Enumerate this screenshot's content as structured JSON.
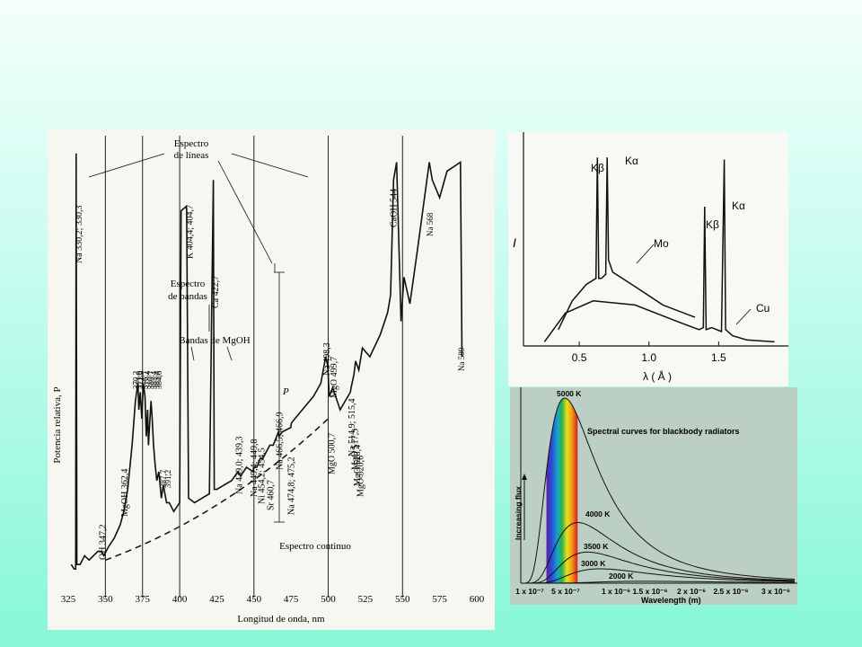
{
  "chart_data": [
    {
      "type": "line",
      "title": "",
      "xlabel": "Longitud de onda, nm",
      "ylabel": "Potencia relativa, P",
      "xlim": [
        325,
        600
      ],
      "x_ticks": [
        "325",
        "350",
        "375",
        "400",
        "425",
        "450",
        "475",
        "500",
        "525",
        "550",
        "575",
        "600"
      ],
      "x_tick_values": [
        325,
        350,
        375,
        400,
        425,
        450,
        475,
        500,
        525,
        550,
        575,
        600
      ],
      "ylim": [
        0,
        100
      ],
      "grid_x": [
        350,
        375,
        400,
        450,
        500,
        550
      ],
      "series": [
        {
          "x": [
            327,
            329,
            330,
            330.3,
            330.8,
            333,
            336,
            339,
            342,
            345,
            347.2,
            349,
            352,
            356,
            360,
            362.4,
            365,
            368,
            370.2,
            371.9,
            372.5,
            373.5,
            374.5,
            375.5,
            376.7,
            377.5,
            378.4,
            379,
            380.7,
            381.5,
            382.4,
            383.4,
            384.6,
            386,
            387.7,
            389,
            391.2,
            393,
            396,
            400,
            401,
            404.4,
            404.7,
            406,
            410,
            415,
            420,
            422.7,
            423.3,
            425,
            430,
            435,
            439.3,
            441,
            445,
            449.4,
            449.8,
            452,
            454.2,
            456,
            460.7,
            463,
            466.5,
            466.9,
            469,
            474.8,
            475.2,
            480,
            485,
            490,
            495,
            498.3,
            499.7,
            500.7,
            503,
            508,
            514.9,
            515.4,
            517.3,
            518.4,
            520.6,
            523,
            528,
            535,
            540,
            542,
            544,
            546,
            549,
            551,
            555,
            560,
            568,
            570,
            575,
            580,
            589,
            590
          ],
          "y": [
            3,
            2,
            2,
            96,
            3,
            3,
            5,
            4,
            5,
            6,
            6,
            5,
            7,
            9,
            12,
            15,
            20,
            30,
            40,
            44,
            38,
            42,
            36,
            44,
            41,
            32,
            38,
            30,
            40,
            36,
            30,
            26,
            22,
            24,
            18,
            21,
            17,
            17,
            15,
            17,
            83,
            84,
            83,
            18,
            17,
            18,
            19,
            90,
            20,
            20,
            21,
            22,
            24,
            23,
            25,
            24,
            25,
            25,
            27,
            27,
            30,
            30,
            33,
            32,
            33,
            34,
            35,
            37,
            39,
            41,
            44,
            50,
            48,
            41,
            43,
            38,
            42,
            43,
            46,
            49,
            47,
            52,
            50,
            55,
            60,
            64,
            90,
            94,
            58,
            68,
            62,
            74,
            94,
            90,
            86,
            92,
            94,
            50
          ],
          "annotations": [
            "Na 330,2; 330,3",
            "OH 347,2",
            "MgOH 362,4",
            "370,2",
            "371,9",
            "372,9",
            "376,7",
            "378,4",
            "380,7",
            "382,4",
            "383,4",
            "384,6",
            "387,7",
            "391,2",
            "K 404,4; 404,7",
            "Ca 422,7",
            "Na 439,0; 439,3",
            "Na 449,4; 449,8",
            "Ni 454,2; 454,5",
            "Sr 460,7",
            "Na 466,5; 466,9",
            "Na 474,8; 475,2",
            "Na 498,3",
            "MgO 499,7",
            "MgO 500,7",
            "Na 514,9; 515,4",
            "MgO 517,3",
            "MgO 518,4",
            "MgO 520,6",
            "CaOH 544",
            "Na 568",
            "Na 589"
          ]
        }
      ],
      "labels": {
        "espectro_lineas": "Espectro\nde líneas",
        "espectro_lineas_1": "Espectro",
        "espectro_lineas_2": "de líneas",
        "espectro_bandas_1": "Espectro",
        "espectro_bandas_2": "de bandas",
        "bandas_mgoh": "Bandas de MgOH",
        "espectro_continuo": "Espectro continuo",
        "p_marker": "P"
      },
      "colors": {
        "line": "#111111",
        "background": "#f7f6f1"
      }
    },
    {
      "type": "line",
      "title": "",
      "xlabel": "λ ( Å )",
      "ylabel": "I",
      "x_ticks": [
        "0.5",
        "1.0",
        "1.5"
      ],
      "x_tick_values": [
        0.5,
        1.0,
        1.5
      ],
      "xlim": [
        0.1,
        2.0
      ],
      "series": [
        {
          "name": "Mo",
          "x": [
            0.35,
            0.45,
            0.55,
            0.62,
            0.63,
            0.64,
            0.66,
            0.69,
            0.7,
            0.71,
            0.74,
            0.9,
            1.1,
            1.33
          ],
          "y": [
            0.08,
            0.22,
            0.3,
            0.33,
            0.92,
            0.33,
            0.33,
            0.35,
            0.92,
            0.42,
            0.36,
            0.29,
            0.2,
            0.14
          ]
        },
        {
          "name": "Cu",
          "x": [
            0.25,
            0.4,
            0.6,
            0.9,
            1.2,
            1.36,
            1.39,
            1.4,
            1.41,
            1.45,
            1.52,
            1.54,
            1.55,
            1.6,
            1.7,
            1.9
          ],
          "y": [
            0.02,
            0.16,
            0.22,
            0.2,
            0.12,
            0.08,
            0.09,
            0.68,
            0.08,
            0.09,
            0.07,
            0.91,
            0.08,
            0.05,
            0.03,
            0.02
          ]
        }
      ],
      "annotations": [
        "Kβ",
        "Kα",
        "Mo",
        "Kβ",
        "Kα",
        "Cu"
      ]
    },
    {
      "type": "line",
      "title": "Spectral curves for blackbody radiators",
      "xlabel": "Wavelength (m)",
      "ylabel": "Increasing flux",
      "x_ticks": [
        "1 x 10⁻⁷",
        "5 x 10⁻⁷",
        "1 x 10⁻⁶",
        "1.5 x 10⁻⁶",
        "2 x 10⁻⁶",
        "2.5 x 10⁻⁶",
        "3 x 10⁻⁶"
      ],
      "x_tick_values": [
        1e-07,
        5e-07,
        1e-06,
        1.5e-06,
        2e-06,
        2.5e-06,
        3e-06
      ],
      "xlim": [
        1e-07,
        3.1e-06
      ],
      "series": [
        {
          "name": "5000 K",
          "peak_x": 5.8e-07,
          "peak_y": 1.0
        },
        {
          "name": "4000 K",
          "peak_x": 7.2e-07,
          "peak_y": 0.42
        },
        {
          "name": "3500 K",
          "peak_x": 8.3e-07,
          "peak_y": 0.25
        },
        {
          "name": "3000 K",
          "peak_x": 9.7e-07,
          "peak_y": 0.13
        },
        {
          "name": "2000 K",
          "peak_x": 1.45e-06,
          "peak_y": 0.03
        }
      ],
      "colors": {
        "background": "#bccfc5",
        "visible_band": "spectrum violet→red"
      }
    }
  ]
}
